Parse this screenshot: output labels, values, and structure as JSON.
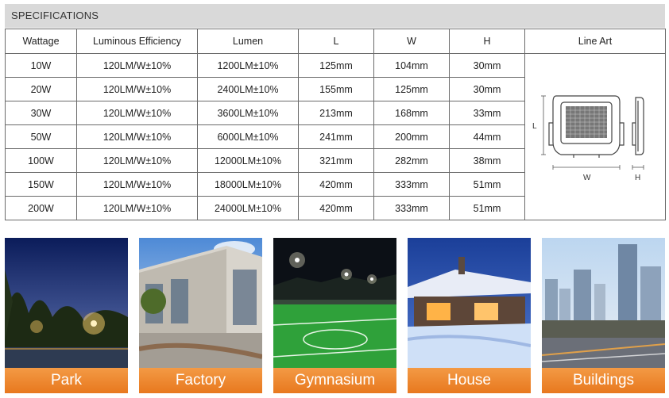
{
  "section_title": "SPECIFICATIONS",
  "columns": [
    "Wattage",
    "Luminous Efficiency",
    "Lumen",
    "L",
    "W",
    "H",
    "Line Art"
  ],
  "rows": [
    [
      "10W",
      "120LM/W±10%",
      "1200LM±10%",
      "125mm",
      "104mm",
      "30mm"
    ],
    [
      "20W",
      "120LM/W±10%",
      "2400LM±10%",
      "155mm",
      "125mm",
      "30mm"
    ],
    [
      "30W",
      "120LM/W±10%",
      "3600LM±10%",
      "213mm",
      "168mm",
      "33mm"
    ],
    [
      "50W",
      "120LM/W±10%",
      "6000LM±10%",
      "241mm",
      "200mm",
      "44mm"
    ],
    [
      "100W",
      "120LM/W±10%",
      "12000LM±10%",
      "321mm",
      "282mm",
      "38mm"
    ],
    [
      "150W",
      "120LM/W±10%",
      "18000LM±10%",
      "420mm",
      "333mm",
      "51mm"
    ],
    [
      "200W",
      "120LM/W±10%",
      "24000LM±10%",
      "420mm",
      "333mm",
      "51mm"
    ]
  ],
  "line_art": {
    "l_label": "L",
    "w_label": "W",
    "h_label": "H"
  },
  "applications": [
    {
      "label": "Park",
      "icon": "park-photo"
    },
    {
      "label": "Factory",
      "icon": "factory-photo"
    },
    {
      "label": "Gymnasium",
      "icon": "gymnasium-photo"
    },
    {
      "label": "House",
      "icon": "house-photo"
    },
    {
      "label": "Buildings",
      "icon": "buildings-photo"
    }
  ],
  "colors": {
    "label_orange": "#ec8a2f",
    "header_gray": "#d9d9d9"
  }
}
